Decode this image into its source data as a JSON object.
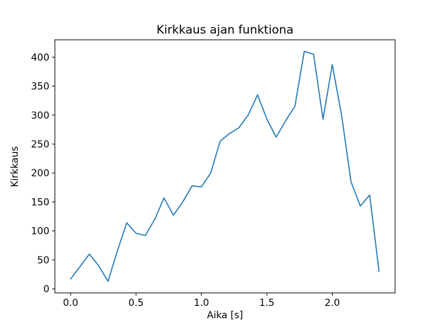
{
  "figure": {
    "background": "#ffffff",
    "line_color": "#1f77b4",
    "spine_color": "#000000"
  },
  "chart_data": {
    "type": "line",
    "title": "Kirkkaus ajan funktiona",
    "xlabel": "Aika [s]",
    "ylabel": "Kirkkaus",
    "x": [
      0.0,
      0.071,
      0.143,
      0.214,
      0.286,
      0.357,
      0.429,
      0.5,
      0.571,
      0.643,
      0.714,
      0.786,
      0.857,
      0.929,
      1.0,
      1.071,
      1.143,
      1.214,
      1.286,
      1.357,
      1.429,
      1.5,
      1.571,
      1.643,
      1.714,
      1.786,
      1.857,
      1.929,
      2.0,
      2.071,
      2.143,
      2.214,
      2.286,
      2.357
    ],
    "y": [
      17,
      38,
      60,
      40,
      13,
      65,
      114,
      96,
      92,
      120,
      157,
      127,
      150,
      178,
      176,
      200,
      255,
      268,
      278,
      300,
      335,
      293,
      262,
      290,
      315,
      410,
      405,
      293,
      387,
      300,
      185,
      143,
      162,
      30
    ],
    "xlim": [
      -0.12,
      2.48
    ],
    "ylim": [
      -7,
      430
    ],
    "xticks": [
      0.0,
      0.5,
      1.0,
      1.5,
      2.0
    ],
    "xtick_labels": [
      "0.0",
      "0.5",
      "1.0",
      "1.5",
      "2.0"
    ],
    "yticks": [
      0,
      50,
      100,
      150,
      200,
      250,
      300,
      350,
      400
    ],
    "ytick_labels": [
      "0",
      "50",
      "100",
      "150",
      "200",
      "250",
      "300",
      "350",
      "400"
    ],
    "grid": false,
    "legend": null
  }
}
